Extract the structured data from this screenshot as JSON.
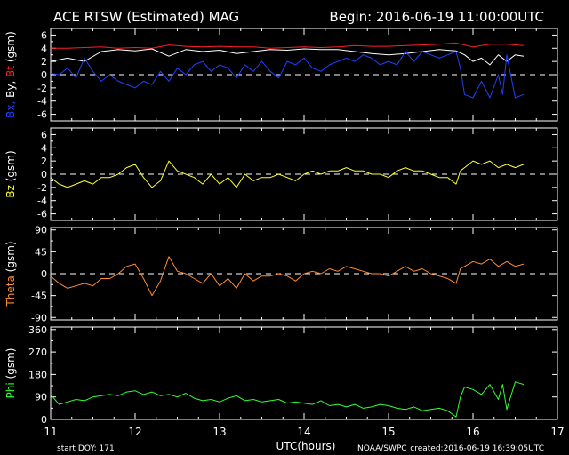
{
  "header": {
    "title": "ACE RTSW (Estimated) MAG",
    "begin": "Begin: 2016-06-19 11:00:00UTC"
  },
  "footer": {
    "start_doy": "start DOY:  171",
    "xlabel": "UTC(hours)",
    "source": "NOAA/SWPC",
    "created": "created:2016-06-19 16:39:05UTC"
  },
  "colors": {
    "bx": "#2040ff",
    "by": "#ffffff",
    "bt": "#ff2020",
    "bz": "#ffff30",
    "theta": "#ff8c30",
    "phi": "#30ff30",
    "axis": "#ffffff"
  },
  "chart_data": [
    {
      "type": "line",
      "ylabel_parts": [
        "Bx,",
        " By,",
        " Bt",
        " (gsm)"
      ],
      "xlim": [
        11,
        17
      ],
      "ylim": [
        -7,
        7
      ],
      "yticks": [
        -6,
        -4,
        -2,
        0,
        2,
        4,
        6
      ],
      "zero_line": true,
      "series": [
        {
          "name": "Bt",
          "color_key": "bt",
          "x": [
            11.0,
            11.2,
            11.4,
            11.6,
            11.8,
            12.0,
            12.2,
            12.4,
            12.6,
            12.8,
            13.0,
            13.2,
            13.4,
            13.6,
            13.8,
            14.0,
            14.2,
            14.4,
            14.6,
            14.8,
            15.0,
            15.2,
            15.4,
            15.6,
            15.8,
            15.9,
            16.0,
            16.2,
            16.4,
            16.6
          ],
          "y": [
            4.0,
            4.0,
            4.1,
            4.2,
            4.0,
            4.1,
            4.0,
            4.5,
            4.3,
            4.2,
            4.3,
            4.2,
            4.2,
            4.0,
            4.1,
            4.2,
            4.1,
            4.2,
            4.4,
            4.3,
            4.3,
            4.4,
            4.5,
            4.6,
            4.8,
            4.5,
            4.2,
            4.6,
            4.6,
            4.4
          ]
        },
        {
          "name": "By",
          "color_key": "by",
          "x": [
            11.0,
            11.2,
            11.4,
            11.6,
            11.8,
            12.0,
            12.2,
            12.4,
            12.6,
            12.8,
            13.0,
            13.2,
            13.4,
            13.6,
            13.8,
            14.0,
            14.2,
            14.4,
            14.6,
            14.8,
            15.0,
            15.2,
            15.4,
            15.6,
            15.8,
            15.9,
            16.0,
            16.1,
            16.2,
            16.3,
            16.4,
            16.5,
            16.6
          ],
          "y": [
            2.0,
            2.5,
            2.0,
            3.5,
            3.8,
            3.6,
            3.9,
            2.8,
            3.8,
            3.5,
            3.7,
            3.2,
            3.5,
            3.8,
            3.7,
            3.9,
            3.8,
            3.8,
            3.5,
            3.2,
            3.0,
            3.2,
            3.5,
            3.8,
            3.6,
            3.0,
            2.0,
            2.5,
            1.5,
            3.0,
            2.0,
            3.0,
            2.8
          ]
        },
        {
          "name": "Bx",
          "color_key": "bx",
          "x": [
            11.0,
            11.1,
            11.2,
            11.3,
            11.4,
            11.5,
            11.6,
            11.7,
            11.8,
            11.9,
            12.0,
            12.1,
            12.2,
            12.3,
            12.4,
            12.5,
            12.6,
            12.7,
            12.8,
            12.9,
            13.0,
            13.1,
            13.2,
            13.3,
            13.4,
            13.5,
            13.6,
            13.7,
            13.8,
            13.9,
            14.0,
            14.1,
            14.2,
            14.3,
            14.4,
            14.5,
            14.6,
            14.7,
            14.8,
            14.9,
            15.0,
            15.1,
            15.2,
            15.3,
            15.4,
            15.5,
            15.6,
            15.7,
            15.8,
            15.85,
            15.9,
            16.0,
            16.1,
            16.2,
            16.3,
            16.35,
            16.4,
            16.5,
            16.6
          ],
          "y": [
            0.2,
            0.0,
            1.0,
            -0.5,
            2.5,
            0.5,
            -1.0,
            0.0,
            -1.0,
            -1.5,
            -2.0,
            -1.0,
            -1.5,
            0.5,
            -1.0,
            1.0,
            0.0,
            1.5,
            2.0,
            0.5,
            1.5,
            1.0,
            -0.5,
            1.5,
            0.5,
            2.0,
            0.5,
            -0.5,
            2.0,
            1.5,
            2.5,
            1.0,
            0.5,
            1.5,
            2.0,
            2.5,
            2.0,
            3.0,
            2.5,
            1.5,
            2.0,
            1.5,
            3.5,
            2.0,
            3.5,
            3.0,
            2.5,
            3.0,
            3.5,
            1.0,
            -3.0,
            -3.5,
            -1.0,
            -3.5,
            0.0,
            -3.0,
            3.0,
            -3.5,
            -3.0
          ]
        }
      ]
    },
    {
      "type": "line",
      "ylabel_parts": [
        "Bz",
        "  (gsm)"
      ],
      "xlim": [
        11,
        17
      ],
      "ylim": [
        -7,
        7
      ],
      "yticks": [
        -6,
        -4,
        -2,
        0,
        2,
        4,
        6
      ],
      "zero_line": true,
      "series": [
        {
          "name": "Bz",
          "color_key": "bz",
          "x": [
            11.0,
            11.1,
            11.2,
            11.3,
            11.4,
            11.5,
            11.6,
            11.7,
            11.8,
            11.9,
            12.0,
            12.1,
            12.2,
            12.3,
            12.4,
            12.5,
            12.6,
            12.7,
            12.8,
            12.9,
            13.0,
            13.1,
            13.2,
            13.3,
            13.4,
            13.5,
            13.6,
            13.7,
            13.8,
            13.9,
            14.0,
            14.1,
            14.2,
            14.3,
            14.4,
            14.5,
            14.6,
            14.7,
            14.8,
            14.9,
            15.0,
            15.1,
            15.2,
            15.3,
            15.4,
            15.5,
            15.6,
            15.7,
            15.8,
            15.85,
            15.9,
            16.0,
            16.1,
            16.2,
            16.3,
            16.4,
            16.5,
            16.6
          ],
          "y": [
            -0.5,
            -1.5,
            -2.0,
            -1.5,
            -1.0,
            -1.5,
            -0.5,
            -0.5,
            0.0,
            1.0,
            1.5,
            -0.5,
            -2.0,
            -1.0,
            2.0,
            0.5,
            0.0,
            -0.5,
            -1.5,
            0.0,
            -1.5,
            -0.5,
            -2.0,
            0.0,
            -1.0,
            -0.5,
            -0.5,
            0.0,
            -0.5,
            -1.0,
            0.0,
            0.5,
            0.0,
            0.5,
            0.5,
            1.0,
            0.5,
            0.5,
            0.0,
            0.0,
            -0.5,
            0.5,
            1.0,
            0.5,
            0.5,
            0.0,
            -0.5,
            -0.5,
            -1.5,
            0.5,
            1.0,
            2.0,
            1.5,
            2.0,
            1.0,
            1.5,
            1.0,
            1.5
          ]
        }
      ]
    },
    {
      "type": "line",
      "ylabel_parts": [
        "Theta",
        "  (gsm)"
      ],
      "xlim": [
        11,
        17
      ],
      "ylim": [
        -95,
        95
      ],
      "yticks": [
        -90,
        -45,
        0,
        45,
        90
      ],
      "zero_line": true,
      "series": [
        {
          "name": "Theta",
          "color_key": "theta",
          "x": [
            11.0,
            11.1,
            11.2,
            11.3,
            11.4,
            11.5,
            11.6,
            11.7,
            11.8,
            11.9,
            12.0,
            12.1,
            12.2,
            12.3,
            12.4,
            12.5,
            12.6,
            12.7,
            12.8,
            12.9,
            13.0,
            13.1,
            13.2,
            13.3,
            13.4,
            13.5,
            13.6,
            13.7,
            13.8,
            13.9,
            14.0,
            14.1,
            14.2,
            14.3,
            14.4,
            14.5,
            14.6,
            14.7,
            14.8,
            14.9,
            15.0,
            15.1,
            15.2,
            15.3,
            15.4,
            15.5,
            15.6,
            15.7,
            15.8,
            15.85,
            15.9,
            16.0,
            16.1,
            16.2,
            16.3,
            16.4,
            16.5,
            16.6
          ],
          "y": [
            -5,
            -20,
            -30,
            -25,
            -20,
            -25,
            -10,
            -10,
            0,
            15,
            20,
            -10,
            -45,
            -15,
            35,
            5,
            0,
            -10,
            -20,
            0,
            -25,
            -10,
            -30,
            0,
            -15,
            -5,
            -5,
            0,
            -5,
            -15,
            0,
            5,
            0,
            10,
            5,
            15,
            10,
            5,
            0,
            0,
            -5,
            5,
            15,
            5,
            10,
            0,
            -5,
            -10,
            -20,
            10,
            15,
            25,
            20,
            30,
            15,
            25,
            15,
            20
          ]
        }
      ]
    },
    {
      "type": "line",
      "ylabel_parts": [
        "Phi",
        "  (gsm)"
      ],
      "xlim": [
        11,
        17
      ],
      "ylim": [
        0,
        370
      ],
      "yticks": [
        0,
        90,
        180,
        270,
        360
      ],
      "zero_line": false,
      "series": [
        {
          "name": "Phi",
          "color_key": "phi",
          "x": [
            11.0,
            11.1,
            11.2,
            11.3,
            11.4,
            11.5,
            11.6,
            11.7,
            11.8,
            11.9,
            12.0,
            12.1,
            12.2,
            12.3,
            12.4,
            12.5,
            12.6,
            12.7,
            12.8,
            12.9,
            13.0,
            13.1,
            13.2,
            13.3,
            13.4,
            13.5,
            13.6,
            13.7,
            13.8,
            13.9,
            14.0,
            14.1,
            14.2,
            14.3,
            14.4,
            14.5,
            14.6,
            14.7,
            14.8,
            14.9,
            15.0,
            15.1,
            15.2,
            15.3,
            15.4,
            15.5,
            15.6,
            15.7,
            15.8,
            15.85,
            15.9,
            16.0,
            16.1,
            16.2,
            16.3,
            16.35,
            16.4,
            16.5,
            16.6
          ],
          "y": [
            100,
            60,
            70,
            80,
            75,
            90,
            95,
            100,
            95,
            110,
            115,
            100,
            110,
            95,
            100,
            90,
            105,
            85,
            75,
            80,
            70,
            85,
            95,
            75,
            80,
            70,
            75,
            80,
            65,
            70,
            65,
            60,
            75,
            55,
            60,
            50,
            60,
            45,
            50,
            60,
            55,
            45,
            40,
            50,
            35,
            40,
            45,
            35,
            10,
            90,
            130,
            120,
            100,
            140,
            80,
            140,
            40,
            150,
            140
          ]
        }
      ]
    }
  ]
}
